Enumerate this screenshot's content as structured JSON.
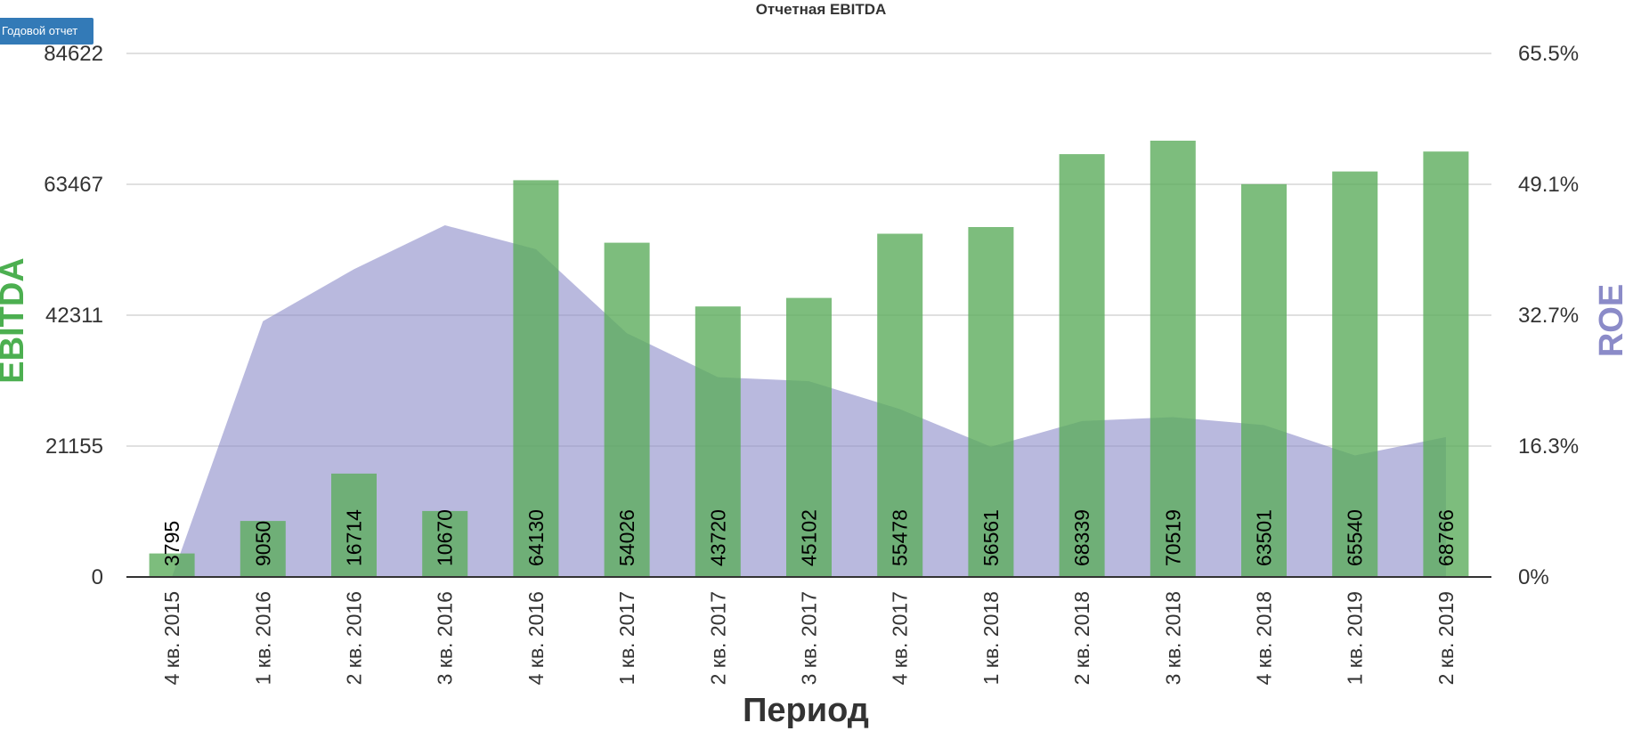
{
  "toolbar": {
    "annual_report_label": "Годовой отчет"
  },
  "chart_data": {
    "type": "bar",
    "title": "Отчетная EBITDA",
    "xlabel": "Период",
    "categories": [
      "4 кв. 2015",
      "1 кв. 2016",
      "2 кв. 2016",
      "3 кв. 2016",
      "4 кв. 2016",
      "1 кв. 2017",
      "2 кв. 2017",
      "3 кв. 2017",
      "4 кв. 2017",
      "1 кв. 2018",
      "2 кв. 2018",
      "3 кв. 2018",
      "4 кв. 2018",
      "1 кв. 2019",
      "2 кв. 2019"
    ],
    "y_left": {
      "label": "EBITDA",
      "ticks": [
        "0",
        "21155",
        "42311",
        "63467",
        "84622"
      ],
      "range": [
        0,
        84622
      ]
    },
    "y_right": {
      "label": "ROE",
      "ticks": [
        "0%",
        "16.3%",
        "32.7%",
        "49.1%",
        "65.5%"
      ],
      "range": [
        0,
        65.5
      ]
    },
    "series": [
      {
        "name": "EBITDA",
        "type": "bar",
        "axis": "left",
        "color": "#5cac5c",
        "values": [
          3795,
          9050,
          16714,
          10670,
          64130,
          54026,
          43720,
          45102,
          55478,
          56561,
          68339,
          70519,
          63501,
          65540,
          68766
        ],
        "labels": [
          "3795",
          "9050",
          "16714",
          "10670",
          "64130",
          "54026",
          "43720",
          "45102",
          "55478",
          "56561",
          "68339",
          "70519",
          "63501",
          "65540",
          "68766"
        ]
      },
      {
        "name": "ROE",
        "type": "area",
        "axis": "right",
        "color": "#8b8bc8",
        "values": [
          0,
          32.0,
          38.5,
          44.0,
          41.0,
          30.5,
          25.0,
          24.5,
          21.0,
          16.3,
          19.5,
          20.0,
          19.0,
          15.2,
          17.5
        ]
      }
    ],
    "grid": true,
    "legend": "none"
  }
}
